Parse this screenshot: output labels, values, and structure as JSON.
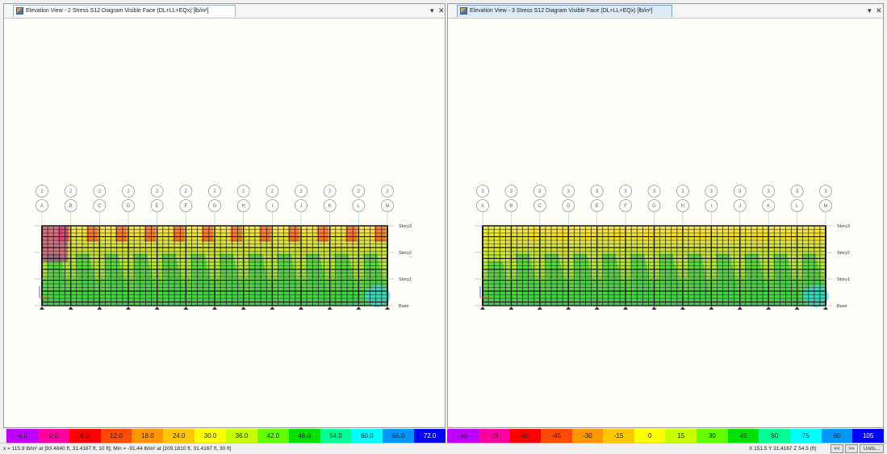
{
  "views": [
    {
      "tab_label": "Elevation View - 2   Stress S12 Diagram  Visible Face   (DL+LL+EQx)  [lb/in²]",
      "grid_number": "2",
      "pier_min_color": "#ff2a2a",
      "corner_color": "#cc22aa",
      "legend": {
        "labels": [
          "-6.0",
          "0.0",
          "6.0",
          "12.0",
          "18.0",
          "24.0",
          "30.0",
          "36.0",
          "42.0",
          "48.0",
          "54.0",
          "60.0",
          "66.0",
          "72.0"
        ],
        "colors": [
          "#c000ff",
          "#ff00a0",
          "#ff0000",
          "#ff4a00",
          "#ff9600",
          "#ffc800",
          "#ffff00",
          "#c8ff00",
          "#64ff00",
          "#00e100",
          "#00ff96",
          "#00ffff",
          "#0096ff",
          "#0000ff"
        ]
      }
    },
    {
      "tab_label": "Elevation View - 3   Stress S12 Diagram  Visible Face   (DL+LL+EQx)  [lb/in²]",
      "grid_number": "3",
      "pier_min_color": "#ffe01a",
      "corner_color": "#e6f21e",
      "legend": {
        "labels": [
          "-90",
          "-75",
          "-60",
          "-45",
          "-30",
          "-15",
          "0",
          "15",
          "30",
          "45",
          "60",
          "75",
          "90",
          "105"
        ],
        "colors": [
          "#c000ff",
          "#ff00a0",
          "#ff0000",
          "#ff4a00",
          "#ff9600",
          "#ffc800",
          "#ffff00",
          "#c8ff00",
          "#64ff00",
          "#00e100",
          "#00ff96",
          "#00ffff",
          "#0096ff",
          "#0000ff"
        ]
      }
    }
  ],
  "grid_letters": [
    "A",
    "B",
    "C",
    "D",
    "E",
    "F",
    "G",
    "H",
    "I",
    "J",
    "K",
    "L",
    "M"
  ],
  "stories": [
    "Story3",
    "Story2",
    "Story1",
    "Base"
  ],
  "window_controls": {
    "dropdown": "▾",
    "close": "✕"
  },
  "status": {
    "text": "x = 115.9 lb/in² at [93.4840 ft, 31.4167 ft, 10 ft];  Min = -91.44 lb/in² at [109.1810 ft, 31.4167 ft, 30 ft]",
    "coords": "X 151.5  Y 31.4167  Z 54.5 (ft)",
    "buttons": {
      "prev": "<<",
      "next": ">>",
      "units": "Units..."
    }
  }
}
